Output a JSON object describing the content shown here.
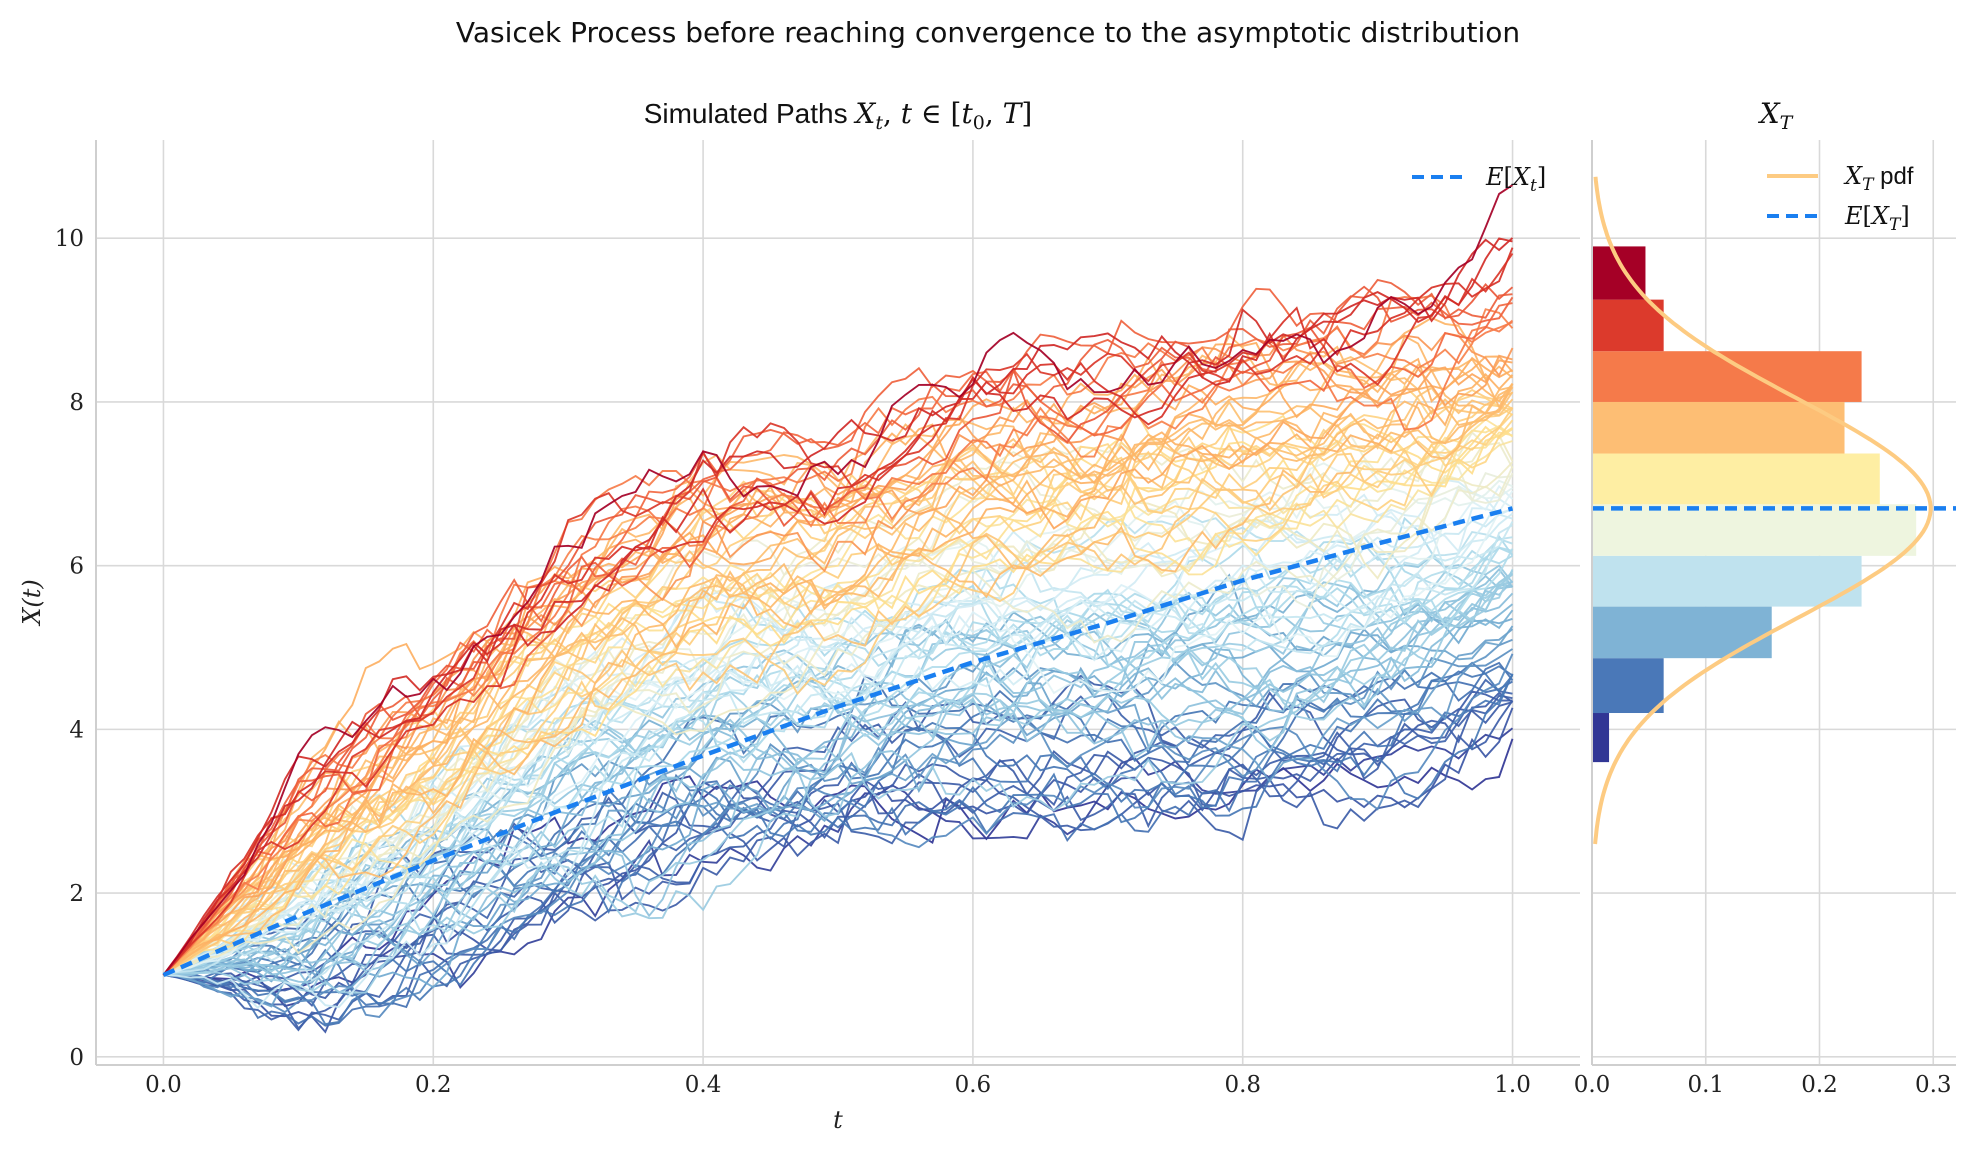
{
  "figure": {
    "suptitle": "Vasicek Process before reaching convergence to the asymptotic distribution"
  },
  "chart_data": [
    {
      "type": "line",
      "title": "Simulated Paths X_t, t ∈ [t_0, T]",
      "xlabel": "t",
      "ylabel": "X(t)",
      "xlim": [
        -0.05,
        1.05
      ],
      "ylim": [
        -0.1,
        11.2
      ],
      "xticks": [
        "0.0",
        "0.2",
        "0.4",
        "0.6",
        "0.8",
        "1.0"
      ],
      "xtick_values": [
        0.0,
        0.2,
        0.4,
        0.6,
        0.8,
        1.0
      ],
      "yticks": [
        "0",
        "2",
        "4",
        "6",
        "8",
        "10"
      ],
      "ytick_values": [
        0,
        2,
        4,
        6,
        8,
        10
      ],
      "grid": true,
      "legend_placement": "top-right",
      "process": {
        "x0": 1.0,
        "t0": 0.0,
        "T": 1.0,
        "n_paths": 100,
        "n_steps": 100,
        "colormap": "RdYlBu_r by final value"
      },
      "series": [
        {
          "name": "E[X_t]",
          "style": "dashed",
          "color": "#1a7ff0",
          "x": [
            0.0,
            0.1,
            0.2,
            0.3,
            0.4,
            0.5,
            0.6,
            0.7,
            0.8,
            0.9,
            1.0
          ],
          "values": [
            1.0,
            1.72,
            2.4,
            3.05,
            3.68,
            4.28,
            4.82,
            5.3,
            5.82,
            6.27,
            6.7
          ]
        }
      ],
      "path_band": {
        "t": [
          0.0,
          0.1,
          0.2,
          0.3,
          0.4,
          0.5,
          0.6,
          0.7,
          0.8,
          0.9,
          1.0
        ],
        "min": [
          1.0,
          0.5,
          0.9,
          1.6,
          2.0,
          2.4,
          2.5,
          2.6,
          2.6,
          2.8,
          3.6
        ],
        "max": [
          1.0,
          3.3,
          4.9,
          6.6,
          7.8,
          7.9,
          9.0,
          9.0,
          9.6,
          9.7,
          10.1
        ]
      }
    },
    {
      "type": "bar",
      "orientation": "horizontal",
      "title": "X_T",
      "xlim": [
        0.0,
        0.32
      ],
      "xticks": [
        "0.0",
        "0.1",
        "0.2",
        "0.3"
      ],
      "xtick_values": [
        0.0,
        0.1,
        0.2,
        0.3
      ],
      "grid": true,
      "legend_placement": "top-right",
      "bins": [
        {
          "lo": 3.6,
          "hi": 4.2,
          "density": 0.015,
          "color": "#313695"
        },
        {
          "lo": 4.2,
          "hi": 4.87,
          "density": 0.063,
          "color": "#4a78b8"
        },
        {
          "lo": 4.87,
          "hi": 5.5,
          "density": 0.158,
          "color": "#7fb3d5"
        },
        {
          "lo": 5.5,
          "hi": 6.12,
          "density": 0.237,
          "color": "#bfe2ee"
        },
        {
          "lo": 6.12,
          "hi": 6.75,
          "density": 0.285,
          "color": "#eef5df"
        },
        {
          "lo": 6.75,
          "hi": 7.37,
          "density": 0.253,
          "color": "#feeea3"
        },
        {
          "lo": 7.37,
          "hi": 8.0,
          "density": 0.222,
          "color": "#fdbe74"
        },
        {
          "lo": 8.0,
          "hi": 8.62,
          "density": 0.237,
          "color": "#f57a4a"
        },
        {
          "lo": 8.62,
          "hi": 9.25,
          "density": 0.063,
          "color": "#dc3a2c"
        },
        {
          "lo": 9.25,
          "hi": 9.9,
          "density": 0.047,
          "color": "#a50026"
        }
      ],
      "pdf": {
        "mean": 6.7,
        "std": 1.34,
        "range": [
          2.6,
          10.75
        ],
        "color": "#fdcb82"
      },
      "series": [
        {
          "name": "X_T pdf",
          "style": "solid",
          "color": "#fdcb82"
        },
        {
          "name": "E[X_T]",
          "style": "dashed",
          "color": "#1a7ff0",
          "value": 6.7
        }
      ]
    }
  ]
}
